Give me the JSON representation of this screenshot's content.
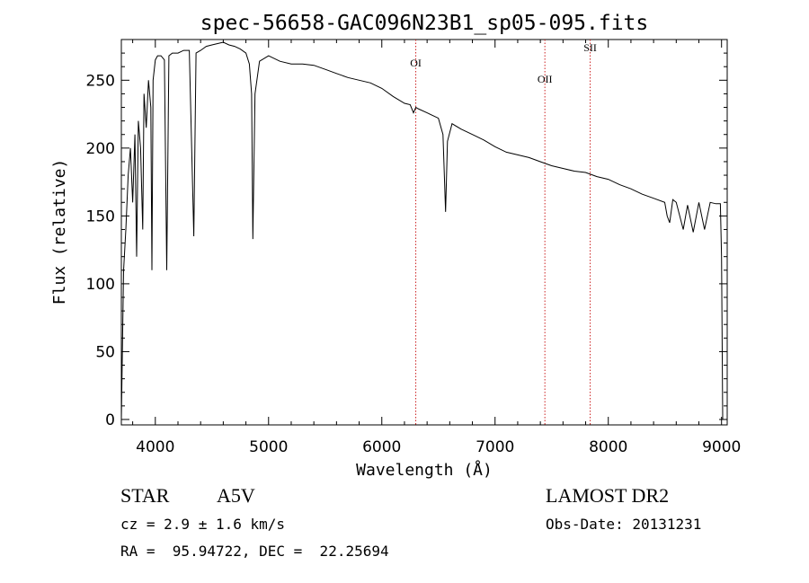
{
  "chart_data": {
    "type": "line",
    "title": "spec-56658-GAC096N23B1_sp05-095.fits",
    "xlabel": "Wavelength (Å)",
    "ylabel": "Flux (relative)",
    "xlim": [
      3700,
      9050
    ],
    "ylim": [
      -4,
      280
    ],
    "xticks": [
      4000,
      5000,
      6000,
      7000,
      8000,
      9000
    ],
    "yticks": [
      0,
      50,
      100,
      150,
      200,
      250
    ],
    "grid": false,
    "series": [
      {
        "x": [
          3700,
          3720,
          3740,
          3760,
          3780,
          3800,
          3820,
          3835,
          3850,
          3870,
          3889,
          3900,
          3920,
          3940,
          3960,
          3970,
          3980,
          4000,
          4020,
          4050,
          4080,
          4101,
          4120,
          4150,
          4200,
          4250,
          4300,
          4340,
          4360,
          4400,
          4450,
          4500,
          4550,
          4600,
          4650,
          4700,
          4750,
          4800,
          4830,
          4850,
          4861,
          4880,
          4920,
          5000,
          5100,
          5200,
          5300,
          5400,
          5500,
          5600,
          5700,
          5800,
          5900,
          6000,
          6100,
          6200,
          6250,
          6280,
          6300,
          6320,
          6400,
          6500,
          6540,
          6563,
          6580,
          6620,
          6700,
          6800,
          6900,
          7000,
          7100,
          7200,
          7300,
          7400,
          7500,
          7600,
          7700,
          7800,
          7900,
          8000,
          8100,
          8200,
          8300,
          8400,
          8498,
          8520,
          8542,
          8570,
          8600,
          8662,
          8700,
          8750,
          8800,
          8850,
          8900,
          8950,
          8990,
          9000,
          9010
        ],
        "y": [
          0,
          110,
          140,
          180,
          200,
          160,
          210,
          120,
          220,
          200,
          140,
          240,
          215,
          250,
          230,
          110,
          250,
          265,
          268,
          268,
          265,
          110,
          268,
          270,
          270,
          272,
          272,
          135,
          270,
          272,
          275,
          276,
          277,
          278,
          276,
          275,
          273,
          270,
          262,
          240,
          133,
          240,
          264,
          268,
          264,
          262,
          262,
          261,
          258,
          255,
          252,
          250,
          248,
          244,
          238,
          233,
          232,
          226,
          230,
          229,
          226,
          222,
          210,
          153,
          205,
          218,
          214,
          210,
          206,
          201,
          197,
          195,
          193,
          190,
          187,
          185,
          183,
          182,
          179,
          177,
          173,
          170,
          166,
          163,
          160,
          150,
          145,
          162,
          160,
          140,
          158,
          138,
          160,
          140,
          160,
          159,
          159,
          120,
          0
        ]
      }
    ],
    "annotations": [
      {
        "label": "OI",
        "x": 6300
      },
      {
        "label": "OII",
        "x": 7440
      },
      {
        "label": "SII",
        "x": 7840
      }
    ]
  },
  "info": {
    "object_type": "STAR",
    "spectral_class": "A5V",
    "survey": "LAMOST DR2",
    "cz": "cz = 2.9 ± 1.6 km/s",
    "obs_date": "Obs-Date: 20131231",
    "coords": "RA =  95.94722, DEC =  22.25694"
  },
  "colors": {
    "line": "#000000",
    "marker_line": "#cc2222",
    "background": "#ffffff"
  }
}
